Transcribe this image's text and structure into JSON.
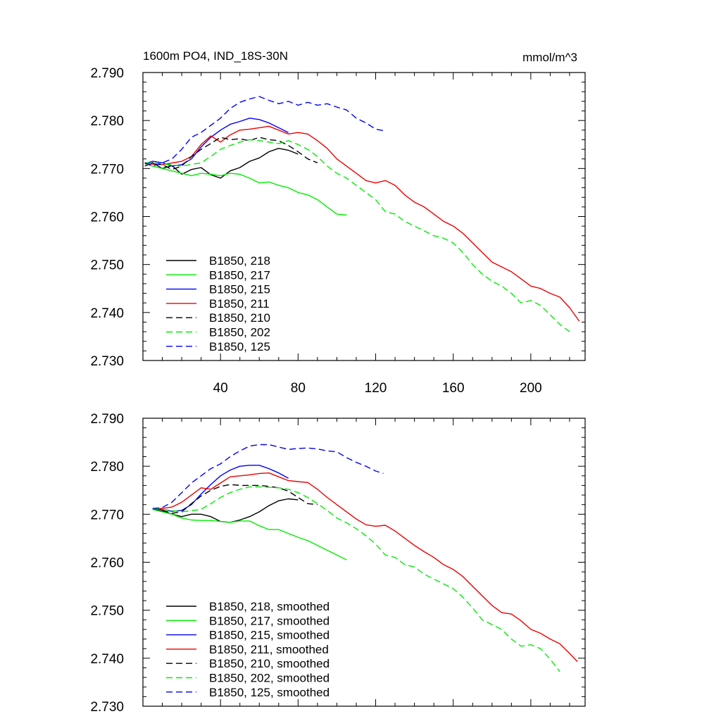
{
  "chart_data": [
    {
      "type": "line",
      "title": "1600m PO4, IND_18S-30N",
      "units": "mmol/m^3",
      "xlim": [
        0,
        228
      ],
      "ylim": [
        2.73,
        2.79
      ],
      "xticks": [
        40,
        80,
        120,
        160,
        200
      ],
      "xtick_labels": [
        "40",
        "80",
        "120",
        "160",
        "200"
      ],
      "yticks": [
        2.73,
        2.74,
        2.75,
        2.76,
        2.77,
        2.78,
        2.79
      ],
      "ytick_labels": [
        "2.730",
        "2.740",
        "2.750",
        "2.760",
        "2.770",
        "2.780",
        "2.790"
      ],
      "legend_position": "lower-left",
      "series": [
        {
          "name": "B1850, 218",
          "color": "#000000",
          "dash": "solid",
          "x": [
            1,
            5,
            10,
            15,
            20,
            25,
            30,
            35,
            40,
            45,
            50,
            55,
            60,
            65,
            70,
            75,
            80
          ],
          "y": [
            2.7705,
            2.7712,
            2.77,
            2.7706,
            2.7688,
            2.7698,
            2.7702,
            2.7687,
            2.768,
            2.7695,
            2.7702,
            2.7715,
            2.7722,
            2.7735,
            2.7742,
            2.7738,
            2.773
          ]
        },
        {
          "name": "B1850, 217",
          "color": "#00ee00",
          "dash": "solid",
          "x": [
            1,
            5,
            10,
            15,
            20,
            25,
            30,
            35,
            40,
            45,
            50,
            55,
            60,
            65,
            70,
            75,
            80,
            85,
            90,
            95,
            100,
            105
          ],
          "y": [
            2.771,
            2.7705,
            2.77,
            2.7695,
            2.769,
            2.7685,
            2.769,
            2.7688,
            2.7685,
            2.769,
            2.7688,
            2.768,
            2.767,
            2.7672,
            2.7665,
            2.766,
            2.765,
            2.7645,
            2.7635,
            2.762,
            2.7605,
            2.7603
          ]
        },
        {
          "name": "B1850, 215",
          "color": "#0000ff",
          "dash": "solid",
          "x": [
            1,
            5,
            10,
            15,
            20,
            25,
            30,
            35,
            40,
            45,
            50,
            55,
            60,
            65,
            70,
            75
          ],
          "y": [
            2.771,
            2.7715,
            2.7712,
            2.7705,
            2.7708,
            2.772,
            2.7745,
            2.7765,
            2.778,
            2.7792,
            2.7798,
            2.7805,
            2.7802,
            2.7795,
            2.7785,
            2.7775
          ]
        },
        {
          "name": "B1850, 211",
          "color": "#ee0000",
          "dash": "solid",
          "x": [
            1,
            10,
            20,
            25,
            30,
            35,
            40,
            45,
            50,
            55,
            60,
            65,
            70,
            75,
            80,
            85,
            90,
            95,
            100,
            105,
            110,
            115,
            120,
            125,
            130,
            135,
            140,
            145,
            150,
            155,
            160,
            165,
            170,
            175,
            180,
            185,
            190,
            195,
            200,
            205,
            210,
            215,
            220,
            225
          ],
          "y": [
            2.771,
            2.7708,
            2.7715,
            2.7725,
            2.775,
            2.7768,
            2.7755,
            2.777,
            2.778,
            2.7782,
            2.7785,
            2.7788,
            2.778,
            2.7772,
            2.7775,
            2.7772,
            2.7758,
            2.7742,
            2.772,
            2.7705,
            2.769,
            2.7675,
            2.767,
            2.7675,
            2.7665,
            2.7645,
            2.763,
            2.762,
            2.7605,
            2.759,
            2.758,
            2.7565,
            2.7545,
            2.7525,
            2.7505,
            2.7495,
            2.7485,
            2.747,
            2.7455,
            2.745,
            2.744,
            2.7432,
            2.741,
            2.7382
          ]
        },
        {
          "name": "B1850, 210",
          "color": "#000000",
          "dash": "dashed",
          "x": [
            1,
            10,
            15,
            20,
            25,
            30,
            35,
            40,
            45,
            50,
            55,
            60,
            65,
            70,
            75,
            80,
            85,
            90
          ],
          "y": [
            2.7712,
            2.7708,
            2.7698,
            2.7705,
            2.7725,
            2.774,
            2.7752,
            2.7765,
            2.776,
            2.7762,
            2.7758,
            2.7765,
            2.776,
            2.7758,
            2.7748,
            2.7735,
            2.772,
            2.7712
          ]
        },
        {
          "name": "B1850, 202",
          "color": "#00ee00",
          "dash": "dashed",
          "x": [
            1,
            10,
            20,
            30,
            35,
            40,
            45,
            50,
            55,
            60,
            65,
            70,
            75,
            80,
            85,
            90,
            95,
            100,
            105,
            110,
            115,
            120,
            125,
            130,
            135,
            140,
            145,
            150,
            155,
            160,
            165,
            170,
            175,
            180,
            185,
            190,
            195,
            200,
            205,
            210,
            215,
            220
          ],
          "y": [
            2.7712,
            2.771,
            2.7705,
            2.7712,
            2.7725,
            2.774,
            2.7748,
            2.7755,
            2.776,
            2.7758,
            2.7755,
            2.7752,
            2.7758,
            2.775,
            2.774,
            2.7725,
            2.7705,
            2.769,
            2.768,
            2.7665,
            2.765,
            2.7635,
            2.761,
            2.7605,
            2.759,
            2.758,
            2.757,
            2.756,
            2.7555,
            2.7545,
            2.7525,
            2.75,
            2.748,
            2.7465,
            2.7455,
            2.744,
            2.742,
            2.7425,
            2.7415,
            2.7395,
            2.7375,
            2.736
          ]
        },
        {
          "name": "B1850, 125",
          "color": "#0000ff",
          "dash": "dashed",
          "x": [
            1,
            5,
            10,
            15,
            20,
            25,
            30,
            35,
            40,
            45,
            50,
            55,
            60,
            65,
            70,
            75,
            80,
            85,
            90,
            95,
            100,
            105,
            110,
            115,
            120,
            125
          ],
          "y": [
            2.7712,
            2.7705,
            2.7712,
            2.772,
            2.774,
            2.7765,
            2.7775,
            2.779,
            2.7805,
            2.7825,
            2.7838,
            2.7845,
            2.785,
            2.7842,
            2.7835,
            2.784,
            2.7832,
            2.7838,
            2.7832,
            2.7835,
            2.7828,
            2.7822,
            2.7805,
            2.7795,
            2.7782,
            2.7778
          ]
        }
      ]
    },
    {
      "type": "line",
      "title": "",
      "xlim": [
        0,
        228
      ],
      "ylim": [
        2.73,
        2.79
      ],
      "xticks": [
        40,
        80,
        120,
        160,
        200
      ],
      "yticks": [
        2.73,
        2.74,
        2.75,
        2.76,
        2.77,
        2.78,
        2.79
      ],
      "ytick_labels": [
        "2.730",
        "2.740",
        "2.750",
        "2.760",
        "2.770",
        "2.780",
        "2.790"
      ],
      "legend_position": "lower-left",
      "series": [
        {
          "name": "B1850, 218, smoothed",
          "color": "#000000",
          "dash": "solid",
          "x": [
            5,
            10,
            15,
            20,
            25,
            30,
            35,
            40,
            45,
            50,
            55,
            60,
            65,
            70,
            75,
            80
          ],
          "y": [
            2.771,
            2.7707,
            2.77,
            2.7695,
            2.77,
            2.77,
            2.7695,
            2.7685,
            2.7683,
            2.7688,
            2.7695,
            2.7705,
            2.7718,
            2.7728,
            2.7732,
            2.773
          ]
        },
        {
          "name": "B1850, 217, smoothed",
          "color": "#00ee00",
          "dash": "solid",
          "x": [
            5,
            10,
            15,
            20,
            25,
            30,
            35,
            40,
            45,
            50,
            55,
            60,
            65,
            70,
            75,
            80,
            85,
            90,
            95,
            100,
            105
          ],
          "y": [
            2.771,
            2.7705,
            2.77,
            2.7692,
            2.7688,
            2.7687,
            2.7687,
            2.7685,
            2.7683,
            2.7686,
            2.7686,
            2.7676,
            2.7668,
            2.7668,
            2.766,
            2.7652,
            2.7645,
            2.7635,
            2.7625,
            2.7615,
            2.7605
          ]
        },
        {
          "name": "B1850, 215, smoothed",
          "color": "#0000ff",
          "dash": "solid",
          "x": [
            5,
            10,
            15,
            20,
            25,
            30,
            35,
            40,
            45,
            50,
            55,
            60,
            65,
            70,
            75
          ],
          "y": [
            2.7712,
            2.771,
            2.7706,
            2.7708,
            2.772,
            2.7742,
            2.7762,
            2.778,
            2.7792,
            2.78,
            2.7802,
            2.7802,
            2.7795,
            2.7786,
            2.7775
          ]
        },
        {
          "name": "B1850, 211, smoothed",
          "color": "#ee0000",
          "dash": "solid",
          "x": [
            5,
            10,
            15,
            20,
            25,
            30,
            35,
            40,
            45,
            50,
            55,
            60,
            65,
            70,
            75,
            80,
            85,
            90,
            95,
            100,
            105,
            110,
            115,
            120,
            125,
            130,
            135,
            140,
            145,
            150,
            155,
            160,
            165,
            170,
            175,
            180,
            185,
            190,
            195,
            200,
            205,
            210,
            215,
            220,
            224
          ],
          "y": [
            2.7712,
            2.7712,
            2.7715,
            2.7725,
            2.774,
            2.7755,
            2.7752,
            2.7765,
            2.7778,
            2.778,
            2.7782,
            2.7785,
            2.7786,
            2.7778,
            2.777,
            2.7768,
            2.7766,
            2.7752,
            2.7735,
            2.772,
            2.7705,
            2.769,
            2.7678,
            2.7675,
            2.7677,
            2.7665,
            2.765,
            2.7635,
            2.7622,
            2.761,
            2.7595,
            2.7585,
            2.757,
            2.755,
            2.753,
            2.751,
            2.7495,
            2.7492,
            2.7478,
            2.746,
            2.7452,
            2.744,
            2.743,
            2.741,
            2.7393
          ]
        },
        {
          "name": "B1850, 210, smoothed",
          "color": "#000000",
          "dash": "dashed",
          "x": [
            5,
            10,
            15,
            20,
            25,
            30,
            35,
            40,
            45,
            50,
            55,
            60,
            65,
            70,
            75,
            80,
            85,
            90
          ],
          "y": [
            2.7712,
            2.7708,
            2.7702,
            2.7705,
            2.7722,
            2.7738,
            2.775,
            2.7758,
            2.7762,
            2.776,
            2.776,
            2.776,
            2.7758,
            2.7755,
            2.7748,
            2.7735,
            2.7722,
            2.772
          ]
        },
        {
          "name": "B1850, 202, smoothed",
          "color": "#00ee00",
          "dash": "dashed",
          "x": [
            5,
            10,
            20,
            30,
            35,
            40,
            45,
            50,
            55,
            60,
            65,
            70,
            75,
            80,
            85,
            90,
            95,
            100,
            105,
            110,
            115,
            120,
            125,
            130,
            135,
            140,
            145,
            150,
            155,
            160,
            165,
            170,
            175,
            180,
            185,
            190,
            195,
            200,
            205,
            210,
            215
          ],
          "y": [
            2.7712,
            2.771,
            2.7705,
            2.771,
            2.7722,
            2.7735,
            2.7745,
            2.7752,
            2.7757,
            2.7757,
            2.7756,
            2.7755,
            2.7752,
            2.7745,
            2.7735,
            2.7722,
            2.7708,
            2.7692,
            2.7682,
            2.767,
            2.7655,
            2.7638,
            2.7615,
            2.761,
            2.7595,
            2.759,
            2.7575,
            2.7565,
            2.7555,
            2.7545,
            2.7527,
            2.7505,
            2.748,
            2.747,
            2.746,
            2.744,
            2.7425,
            2.7428,
            2.742,
            2.7398,
            2.7372
          ]
        },
        {
          "name": "B1850, 125, smoothed",
          "color": "#0000ff",
          "dash": "dashed",
          "x": [
            5,
            10,
            15,
            20,
            25,
            30,
            35,
            40,
            45,
            50,
            55,
            60,
            65,
            70,
            75,
            80,
            85,
            90,
            95,
            100,
            105,
            110,
            115,
            120,
            124
          ],
          "y": [
            2.7712,
            2.7714,
            2.7725,
            2.7745,
            2.7765,
            2.778,
            2.7795,
            2.7805,
            2.782,
            2.7832,
            2.7842,
            2.7845,
            2.7845,
            2.784,
            2.7835,
            2.7837,
            2.7838,
            2.7836,
            2.7832,
            2.783,
            2.7818,
            2.7808,
            2.78,
            2.779,
            2.7785
          ]
        }
      ]
    }
  ]
}
